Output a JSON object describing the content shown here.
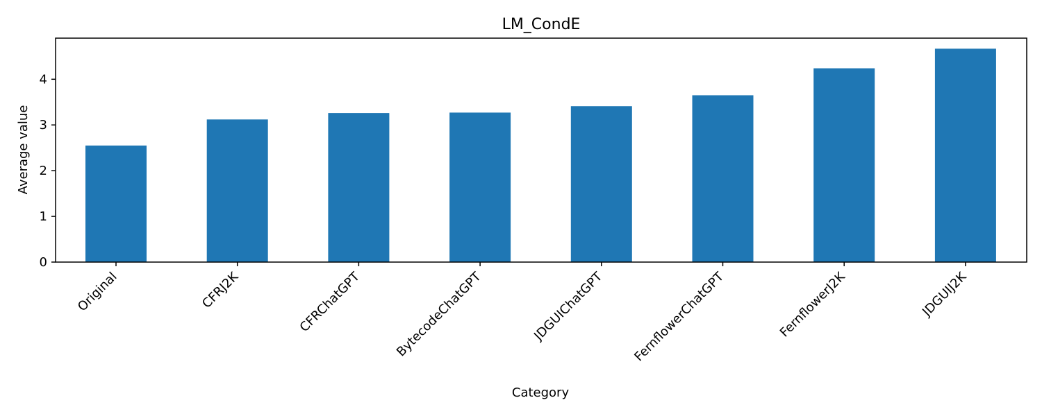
{
  "chart_data": {
    "type": "bar",
    "title": "LM_CondE",
    "xlabel": "Category",
    "ylabel": "Average value",
    "categories": [
      "Original",
      "CFRJ2K",
      "CFRChatGPT",
      "BytecodeChatGPT",
      "JDGUIChatGPT",
      "FernflowerChatGPT",
      "FernflowerJ2K",
      "JDGUIJ2K"
    ],
    "values": [
      2.55,
      3.12,
      3.26,
      3.27,
      3.41,
      3.65,
      4.24,
      4.67
    ],
    "ylim": [
      0,
      4.9
    ],
    "yticks": [
      0,
      1,
      2,
      3,
      4
    ],
    "grid": false,
    "bar_color": "#1f77b4"
  }
}
